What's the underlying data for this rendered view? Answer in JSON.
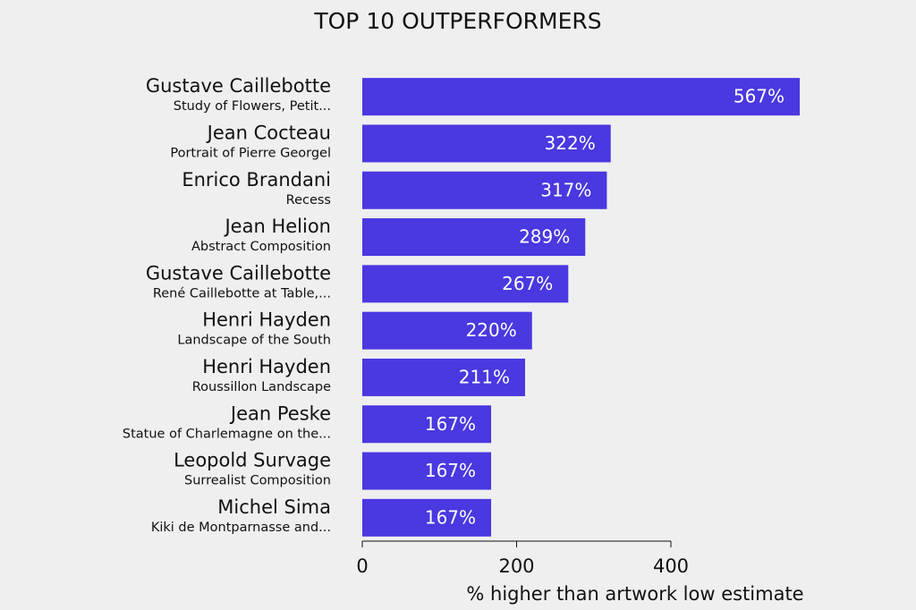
{
  "chart_data": {
    "type": "bar",
    "orientation": "horizontal",
    "title": "TOP 10 OUTPERFORMERS",
    "categories": [
      "Gustave Caillebotte",
      "Jean Cocteau",
      "Enrico Brandani",
      "Jean Helion",
      "Gustave Caillebotte",
      "Henri Hayden",
      "Henri Hayden",
      "Jean Peske",
      "Leopold Survage",
      "Michel Sima"
    ],
    "subtitles": [
      "Study of Flowers, Petit...",
      "Portrait of Pierre Georgel",
      "Recess",
      "Abstract Composition",
      "René Caillebotte at Table,...",
      "Landscape of the South",
      "Roussillon Landscape",
      "Statue of Charlemagne on the...",
      "Surrealist Composition",
      "Kiki de Montparnasse and..."
    ],
    "values": [
      567,
      322,
      317,
      289,
      267,
      220,
      211,
      167,
      167,
      167
    ],
    "value_labels": [
      "567%",
      "322%",
      "317%",
      "289%",
      "267%",
      "220%",
      "211%",
      "167%",
      "167%",
      "167%"
    ],
    "color": "#4a38e0",
    "xlim": [
      0,
      400
    ],
    "xticks": [
      0,
      200,
      400
    ],
    "xlabel": "% higher than artwork low estimate"
  }
}
